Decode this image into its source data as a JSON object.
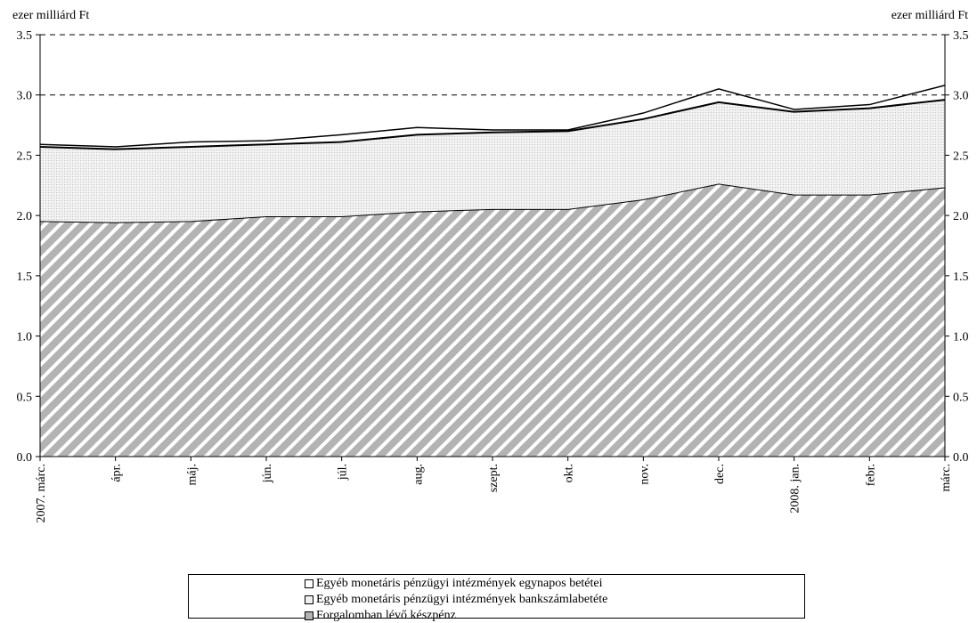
{
  "unit_label_left": "ezer milliárd Ft",
  "unit_label_right": "ezer milliárd Ft",
  "chart_data": {
    "type": "area",
    "stacked": true,
    "categories": [
      "2007. márc.",
      "ápr.",
      "máj.",
      "jún.",
      "júl.",
      "aug.",
      "szept.",
      "okt.",
      "nov.",
      "dec.",
      "2008. jan.",
      "febr.",
      "márc."
    ],
    "series": [
      {
        "name": "Forgalomban lévő készpénz",
        "values": [
          1.95,
          1.94,
          1.95,
          1.99,
          1.99,
          2.03,
          2.05,
          2.05,
          2.13,
          2.26,
          2.17,
          2.17,
          2.23
        ],
        "fill": "hatch-diagonal",
        "color": "#b3b3b3"
      },
      {
        "name": "Egyéb monetáris pénzügyi intézmények bankszámlabetéte",
        "values": [
          0.62,
          0.61,
          0.62,
          0.6,
          0.62,
          0.64,
          0.64,
          0.65,
          0.67,
          0.68,
          0.69,
          0.72,
          0.73
        ],
        "fill": "dotted",
        "color": "#e6e6e6"
      },
      {
        "name": "Egyéb monetáris pénzügyi intézmények egynapos betétei",
        "values": [
          0.02,
          0.02,
          0.04,
          0.03,
          0.06,
          0.06,
          0.02,
          0.01,
          0.05,
          0.11,
          0.02,
          0.03,
          0.12
        ],
        "fill": "none",
        "color": "#ffffff"
      }
    ],
    "ylim": [
      0,
      3.5
    ],
    "yticks": [
      "0.0",
      "0.5",
      "1.0",
      "1.5",
      "2.0",
      "2.5",
      "3.0",
      "3.5"
    ],
    "ytick_values": [
      0,
      0.5,
      1.0,
      1.5,
      2.0,
      2.5,
      3.0,
      3.5
    ],
    "reference_lines": [
      3.0,
      3.5
    ],
    "secondary_y_axis": true
  },
  "legend": {
    "items": [
      {
        "label": "Egyéb monetáris pénzügyi intézmények egynapos betétei",
        "swatch": "#ffffff"
      },
      {
        "label": "Egyéb monetáris pénzügyi intézmények bankszámlabetéte",
        "swatch": "#f0f0f0"
      },
      {
        "label": "Forgalomban lévő készpénz",
        "swatch": "#b3b3b3"
      }
    ]
  }
}
